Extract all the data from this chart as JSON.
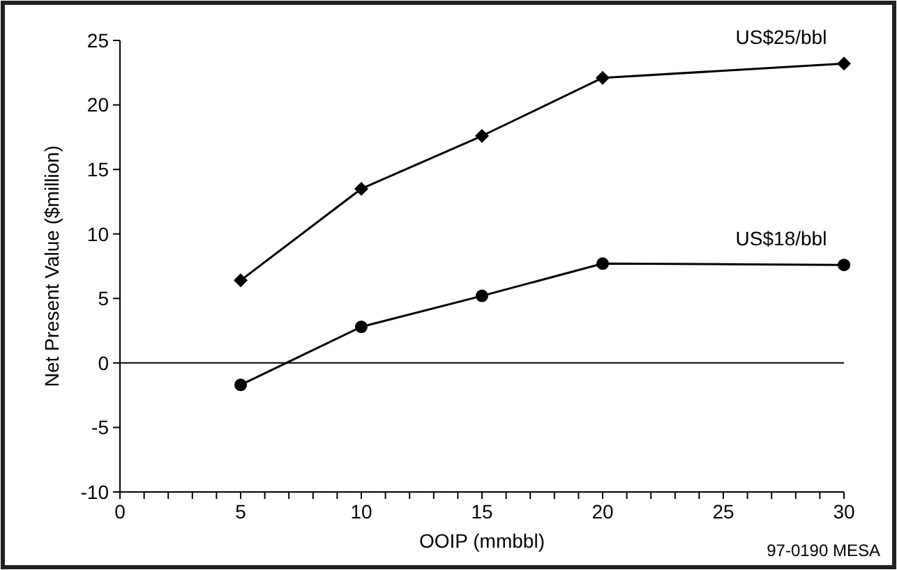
{
  "chart_data": {
    "type": "line",
    "xlabel": "OOIP (mmbbl)",
    "ylabel": "Net Present Value ($million)",
    "x": [
      5,
      10,
      15,
      20,
      30
    ],
    "series": [
      {
        "name": "US$25/bbl",
        "color": "#000000",
        "marker": "diamond",
        "values": [
          6.4,
          13.5,
          17.6,
          22.1,
          23.2
        ]
      },
      {
        "name": "US$18/bbl",
        "color": "#000000",
        "marker": "circle",
        "values": [
          -1.7,
          2.8,
          5.2,
          7.7,
          7.6
        ]
      }
    ],
    "xlim": [
      0,
      30
    ],
    "ylim": [
      -10,
      25
    ],
    "xticks": [
      0,
      {
        "value": 1,
        "label": null
      },
      {
        "value": 2,
        "label": null
      },
      {
        "value": 3,
        "label": null
      },
      {
        "value": 4,
        "label": null
      },
      5,
      {
        "value": 6,
        "label": null
      },
      {
        "value": 7,
        "label": null
      },
      {
        "value": 8,
        "label": null
      },
      {
        "value": 9,
        "label": null
      },
      10,
      {
        "value": 11,
        "label": null
      },
      {
        "value": 12,
        "label": null
      },
      {
        "value": 13,
        "label": null
      },
      {
        "value": 14,
        "label": null
      },
      15,
      {
        "value": 16,
        "label": null
      },
      {
        "value": 17,
        "label": null
      },
      {
        "value": 18,
        "label": null
      },
      {
        "value": 19,
        "label": null
      },
      20,
      {
        "value": 21,
        "label": null
      },
      {
        "value": 22,
        "label": null
      },
      {
        "value": 23,
        "label": null
      },
      {
        "value": 24,
        "label": null
      },
      25,
      {
        "value": 26,
        "label": null
      },
      {
        "value": 27,
        "label": null
      },
      {
        "value": 28,
        "label": null
      },
      {
        "value": 29,
        "label": null
      },
      30
    ],
    "yticks": [
      -10,
      -5,
      0,
      5,
      10,
      15,
      20,
      25
    ],
    "ref_lines": [
      {
        "axis": "y",
        "value": 0,
        "color": "#000000"
      }
    ],
    "grid": false,
    "legend": false,
    "line_style": "solid",
    "annotations": [
      "97-0190 MESA"
    ]
  }
}
